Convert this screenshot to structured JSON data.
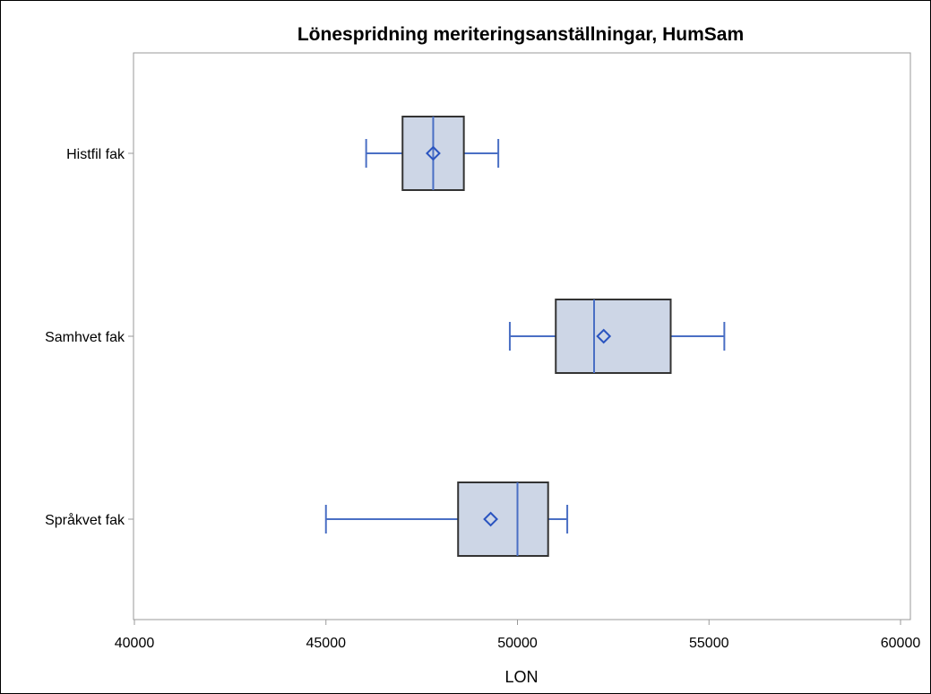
{
  "chart_data": {
    "type": "boxplot",
    "orientation": "horizontal",
    "title": "Lönespridning meriteringsanställningar, HumSam",
    "xlabel": "LON",
    "ylabel": "",
    "xlim": [
      40000,
      60000
    ],
    "xticks": [
      40000,
      45000,
      50000,
      55000,
      60000
    ],
    "xtick_labels": [
      "40000",
      "45000",
      "50000",
      "55000",
      "60000"
    ],
    "categories": [
      "Histfil fak",
      "Samhvet fak",
      "Språkvet fak"
    ],
    "boxes": [
      {
        "category": "Histfil fak",
        "min": 46050,
        "q1": 47000,
        "median": 47800,
        "q3": 48600,
        "max": 49500,
        "mean": 47800
      },
      {
        "category": "Samhvet fak",
        "min": 49800,
        "q1": 51000,
        "median": 52000,
        "q3": 54000,
        "max": 55400,
        "mean": 52250
      },
      {
        "category": "Språkvet fak",
        "min": 45000,
        "q1": 48450,
        "median": 50000,
        "q3": 50800,
        "max": 51300,
        "mean": 49300
      }
    ],
    "grid": false,
    "legend": "none",
    "colors": {
      "box_fill": "#cdd6e6",
      "box_edge": "#333333",
      "whisker": "#4a6fc4",
      "median": "#4a6fc4",
      "mean_marker": "#2a54c0",
      "axis": "#9a9a9a",
      "frame": "#000000"
    }
  }
}
